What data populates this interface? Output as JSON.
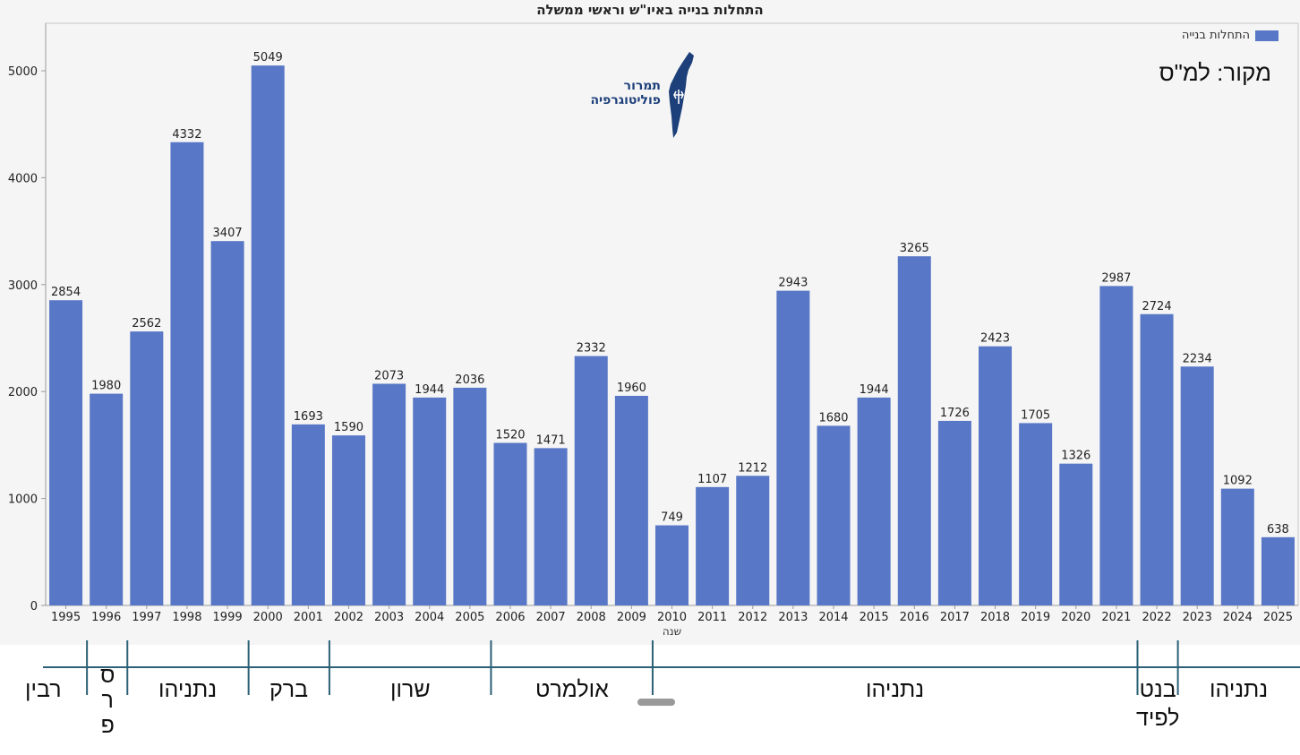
{
  "chart_data": {
    "type": "bar",
    "title": "התחלות בנייה באיו\"ש וראשי ממשלה",
    "xlabel": "שנה",
    "ylabel": "",
    "ylim": [
      0,
      5450
    ],
    "yticks": [
      0,
      1000,
      2000,
      3000,
      4000,
      5000
    ],
    "grid": false,
    "legend_position": "top-right",
    "categories": [
      "1995",
      "1996",
      "1997",
      "1998",
      "1999",
      "2000",
      "2001",
      "2002",
      "2003",
      "2004",
      "2005",
      "2006",
      "2007",
      "2008",
      "2009",
      "2010",
      "2011",
      "2012",
      "2013",
      "2014",
      "2015",
      "2016",
      "2017",
      "2018",
      "2019",
      "2020",
      "2021",
      "2022",
      "2023",
      "2024",
      "2025"
    ],
    "series": [
      {
        "name": "התחלות בנייה",
        "color": "#5877c6",
        "values": [
          2854,
          1980,
          2562,
          4332,
          3407,
          5049,
          1693,
          1590,
          2073,
          1944,
          2036,
          1520,
          1471,
          2332,
          1960,
          749,
          1107,
          1212,
          2943,
          1680,
          1944,
          3265,
          1726,
          2423,
          1705,
          1326,
          2987,
          2724,
          2234,
          1092,
          638
        ]
      }
    ]
  },
  "source_note": "מקור: למ\"ס",
  "logo": {
    "line1": "תמרור",
    "line2": "פוליטוגרפיה",
    "color": "#1d3f7a",
    "icon": "israel-map-signpost-icon"
  },
  "prime_ministers": [
    {
      "name": "רבין",
      "year": "1995",
      "boundary_after": "1995"
    },
    {
      "name": "פרס",
      "year": "1996",
      "vertical": true,
      "boundary_after": "1996"
    },
    {
      "name": "נתניהו",
      "year": "1997–1999",
      "boundary_after": "1999"
    },
    {
      "name": "ברק",
      "year": "1999–2001",
      "boundary_after": "2001"
    },
    {
      "name": "שרון",
      "year": "2001–2006",
      "boundary_after": "2005"
    },
    {
      "name": "אולמרט",
      "year": "2006–2009",
      "boundary_after": "2009"
    },
    {
      "name": "נתניהו",
      "year": "2009–2021",
      "boundary_after": "2021"
    },
    {
      "name": "בנט\nלפיד",
      "year": "2021–2022",
      "boundary_after": "2022"
    },
    {
      "name": "נתניהו",
      "year": "2023–2025"
    }
  ]
}
